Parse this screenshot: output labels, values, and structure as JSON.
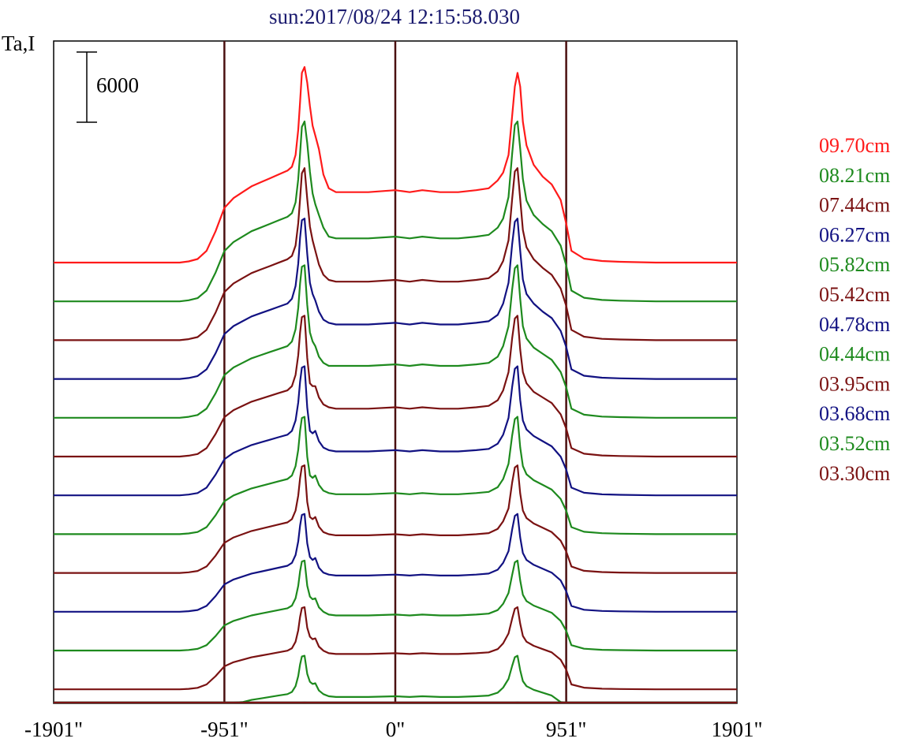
{
  "chart_data": {
    "type": "line",
    "title": "sun:2017/08/24 12:15:58.030",
    "ylabel": "Ta,I",
    "scale_bar_label": "6000",
    "scale_bar_value": 6000,
    "x_tick_labels": [
      "-1901\"",
      "-951\"",
      "0\"",
      "951\"",
      "1901\""
    ],
    "x_ticks": [
      -1901,
      -951,
      0,
      951,
      1901
    ],
    "xlim": [
      -1901,
      1901
    ],
    "vertical_lines_at": [
      -951,
      0,
      951
    ],
    "colors": {
      "title": "#1a1a6e",
      "frame": "#000000",
      "vline": "#4a1010"
    },
    "profile_x": [
      -1901,
      -1750,
      -1600,
      -1450,
      -1200,
      -1150,
      -1100,
      -1050,
      -1000,
      -951,
      -900,
      -850,
      -800,
      -750,
      -700,
      -650,
      -600,
      -575,
      -555,
      -540,
      -530,
      -520,
      -505,
      -490,
      -475,
      -460,
      -445,
      -425,
      -400,
      -370,
      -330,
      -260,
      -150,
      0,
      80,
      150,
      250,
      350,
      450,
      520,
      570,
      600,
      630,
      650,
      665,
      680,
      695,
      710,
      730,
      770,
      820,
      870,
      920,
      951,
      980,
      1050,
      1150,
      1250,
      1450,
      1600,
      1750,
      1901
    ],
    "series": [
      {
        "name": "09.70cm",
        "color": "#ff1a1a",
        "offset": 0,
        "amp": 1.0,
        "profile": [
          0,
          0,
          0,
          0,
          0,
          0.006,
          0.018,
          0.06,
          0.16,
          0.28,
          0.33,
          0.36,
          0.39,
          0.41,
          0.43,
          0.45,
          0.47,
          0.49,
          0.55,
          0.68,
          0.82,
          0.97,
          1.0,
          0.92,
          0.8,
          0.7,
          0.65,
          0.58,
          0.45,
          0.38,
          0.36,
          0.36,
          0.36,
          0.37,
          0.36,
          0.37,
          0.36,
          0.36,
          0.37,
          0.38,
          0.42,
          0.46,
          0.55,
          0.75,
          0.9,
          0.97,
          0.9,
          0.72,
          0.6,
          0.5,
          0.44,
          0.4,
          0.32,
          0.2,
          0.06,
          0.02,
          0.008,
          0.004,
          0,
          0,
          0,
          0
        ]
      },
      {
        "name": "08.21cm",
        "color": "#1e8a1e",
        "offset": 1,
        "amp": 0.92,
        "profile": [
          0,
          0,
          0,
          0,
          0,
          0.006,
          0.018,
          0.06,
          0.16,
          0.28,
          0.33,
          0.36,
          0.39,
          0.41,
          0.43,
          0.45,
          0.47,
          0.49,
          0.55,
          0.68,
          0.82,
          0.97,
          1.0,
          0.88,
          0.72,
          0.6,
          0.54,
          0.48,
          0.41,
          0.36,
          0.35,
          0.35,
          0.35,
          0.36,
          0.35,
          0.36,
          0.35,
          0.35,
          0.36,
          0.37,
          0.41,
          0.46,
          0.58,
          0.82,
          0.98,
          1.0,
          0.85,
          0.68,
          0.56,
          0.48,
          0.43,
          0.39,
          0.31,
          0.2,
          0.06,
          0.02,
          0.008,
          0.004,
          0,
          0,
          0,
          0
        ]
      },
      {
        "name": "07.44cm",
        "color": "#7a1212",
        "offset": 2,
        "amp": 0.88,
        "profile": [
          0,
          0,
          0,
          0,
          0,
          0.006,
          0.018,
          0.06,
          0.16,
          0.28,
          0.33,
          0.36,
          0.39,
          0.41,
          0.43,
          0.45,
          0.47,
          0.49,
          0.55,
          0.68,
          0.82,
          0.97,
          1.0,
          0.82,
          0.66,
          0.58,
          0.52,
          0.44,
          0.38,
          0.35,
          0.34,
          0.34,
          0.34,
          0.35,
          0.34,
          0.35,
          0.34,
          0.34,
          0.35,
          0.36,
          0.4,
          0.46,
          0.58,
          0.82,
          0.98,
          1.0,
          0.82,
          0.64,
          0.54,
          0.47,
          0.42,
          0.38,
          0.3,
          0.2,
          0.06,
          0.02,
          0.008,
          0.004,
          0,
          0,
          0,
          0
        ]
      },
      {
        "name": "06.27cm",
        "color": "#121282",
        "offset": 3,
        "amp": 0.82,
        "profile": [
          0,
          0,
          0,
          0,
          0,
          0.006,
          0.018,
          0.06,
          0.16,
          0.28,
          0.33,
          0.36,
          0.39,
          0.41,
          0.43,
          0.45,
          0.47,
          0.5,
          0.58,
          0.72,
          0.88,
          0.99,
          1.0,
          0.78,
          0.6,
          0.53,
          0.49,
          0.42,
          0.37,
          0.35,
          0.34,
          0.34,
          0.34,
          0.35,
          0.34,
          0.35,
          0.34,
          0.34,
          0.35,
          0.36,
          0.4,
          0.47,
          0.6,
          0.84,
          0.98,
          1.0,
          0.8,
          0.62,
          0.53,
          0.47,
          0.42,
          0.38,
          0.3,
          0.2,
          0.06,
          0.02,
          0.008,
          0.004,
          0,
          0,
          0,
          0
        ]
      },
      {
        "name": "05.82cm",
        "color": "#1e8a1e",
        "offset": 4,
        "amp": 0.78,
        "profile": [
          0,
          0,
          0,
          0,
          0,
          0.006,
          0.018,
          0.06,
          0.16,
          0.28,
          0.33,
          0.36,
          0.39,
          0.41,
          0.43,
          0.45,
          0.47,
          0.5,
          0.58,
          0.72,
          0.88,
          0.99,
          1.0,
          0.74,
          0.56,
          0.5,
          0.47,
          0.4,
          0.36,
          0.34,
          0.34,
          0.34,
          0.34,
          0.35,
          0.34,
          0.35,
          0.34,
          0.34,
          0.35,
          0.36,
          0.4,
          0.47,
          0.6,
          0.84,
          0.98,
          1.0,
          0.78,
          0.6,
          0.52,
          0.46,
          0.42,
          0.38,
          0.3,
          0.2,
          0.06,
          0.02,
          0.008,
          0.004,
          0,
          0,
          0,
          0
        ]
      },
      {
        "name": "05.42cm",
        "color": "#7a1212",
        "offset": 5,
        "amp": 0.72,
        "profile": [
          0,
          0,
          0,
          0,
          0,
          0.006,
          0.018,
          0.06,
          0.16,
          0.28,
          0.33,
          0.36,
          0.39,
          0.41,
          0.43,
          0.45,
          0.47,
          0.5,
          0.58,
          0.72,
          0.88,
          0.99,
          1.0,
          0.7,
          0.52,
          0.5,
          0.5,
          0.42,
          0.37,
          0.35,
          0.34,
          0.34,
          0.34,
          0.35,
          0.34,
          0.35,
          0.34,
          0.34,
          0.35,
          0.36,
          0.4,
          0.47,
          0.6,
          0.84,
          0.98,
          1.0,
          0.76,
          0.6,
          0.52,
          0.46,
          0.42,
          0.38,
          0.3,
          0.2,
          0.06,
          0.02,
          0.008,
          0.004,
          0,
          0,
          0,
          0
        ]
      },
      {
        "name": "04.78cm",
        "color": "#121282",
        "offset": 6,
        "amp": 0.66,
        "profile": [
          0,
          0,
          0,
          0,
          0,
          0.006,
          0.018,
          0.06,
          0.16,
          0.28,
          0.33,
          0.36,
          0.39,
          0.41,
          0.43,
          0.45,
          0.47,
          0.5,
          0.58,
          0.72,
          0.88,
          0.99,
          1.0,
          0.68,
          0.5,
          0.48,
          0.5,
          0.42,
          0.37,
          0.35,
          0.34,
          0.34,
          0.34,
          0.35,
          0.34,
          0.35,
          0.34,
          0.34,
          0.35,
          0.36,
          0.4,
          0.47,
          0.6,
          0.84,
          0.98,
          1.0,
          0.74,
          0.58,
          0.51,
          0.46,
          0.42,
          0.38,
          0.3,
          0.2,
          0.06,
          0.02,
          0.008,
          0.004,
          0,
          0,
          0,
          0
        ]
      },
      {
        "name": "04.44cm",
        "color": "#1e8a1e",
        "offset": 7,
        "amp": 0.6,
        "profile": [
          0,
          0,
          0,
          0,
          0,
          0.006,
          0.018,
          0.06,
          0.16,
          0.28,
          0.33,
          0.36,
          0.39,
          0.41,
          0.43,
          0.45,
          0.47,
          0.5,
          0.58,
          0.72,
          0.88,
          0.99,
          1.0,
          0.66,
          0.5,
          0.48,
          0.5,
          0.42,
          0.37,
          0.35,
          0.34,
          0.34,
          0.34,
          0.35,
          0.34,
          0.35,
          0.34,
          0.34,
          0.35,
          0.36,
          0.4,
          0.47,
          0.6,
          0.84,
          0.98,
          1.0,
          0.74,
          0.58,
          0.51,
          0.46,
          0.42,
          0.38,
          0.3,
          0.2,
          0.06,
          0.02,
          0.008,
          0.004,
          0,
          0,
          0,
          0
        ]
      },
      {
        "name": "03.95cm",
        "color": "#7a1212",
        "offset": 8,
        "amp": 0.55,
        "profile": [
          0,
          0,
          0,
          0,
          0,
          0.006,
          0.018,
          0.06,
          0.16,
          0.28,
          0.33,
          0.36,
          0.39,
          0.41,
          0.43,
          0.45,
          0.47,
          0.5,
          0.58,
          0.72,
          0.88,
          0.99,
          1.0,
          0.66,
          0.52,
          0.5,
          0.52,
          0.43,
          0.38,
          0.36,
          0.35,
          0.35,
          0.35,
          0.36,
          0.35,
          0.36,
          0.35,
          0.35,
          0.36,
          0.37,
          0.41,
          0.48,
          0.6,
          0.84,
          0.98,
          1.0,
          0.74,
          0.58,
          0.51,
          0.46,
          0.42,
          0.38,
          0.3,
          0.2,
          0.06,
          0.02,
          0.008,
          0.004,
          0,
          0,
          0,
          0
        ]
      },
      {
        "name": "03.68cm",
        "color": "#121282",
        "offset": 9,
        "amp": 0.5,
        "profile": [
          0,
          0,
          0,
          0,
          0,
          0.006,
          0.018,
          0.06,
          0.16,
          0.28,
          0.33,
          0.36,
          0.39,
          0.41,
          0.43,
          0.45,
          0.47,
          0.5,
          0.58,
          0.72,
          0.88,
          0.99,
          1.0,
          0.7,
          0.56,
          0.53,
          0.55,
          0.45,
          0.4,
          0.38,
          0.37,
          0.37,
          0.37,
          0.38,
          0.37,
          0.38,
          0.37,
          0.37,
          0.38,
          0.39,
          0.43,
          0.5,
          0.62,
          0.84,
          0.98,
          1.0,
          0.76,
          0.6,
          0.53,
          0.48,
          0.44,
          0.4,
          0.32,
          0.21,
          0.06,
          0.02,
          0.008,
          0.004,
          0,
          0,
          0,
          0
        ]
      },
      {
        "name": "03.52cm",
        "color": "#1e8a1e",
        "offset": 10,
        "amp": 0.46,
        "profile": [
          0,
          0,
          0,
          0,
          0,
          0.006,
          0.018,
          0.06,
          0.16,
          0.28,
          0.33,
          0.36,
          0.39,
          0.41,
          0.43,
          0.45,
          0.47,
          0.5,
          0.58,
          0.72,
          0.88,
          0.99,
          1.0,
          0.72,
          0.6,
          0.57,
          0.58,
          0.48,
          0.43,
          0.4,
          0.39,
          0.39,
          0.39,
          0.4,
          0.39,
          0.4,
          0.39,
          0.39,
          0.4,
          0.41,
          0.45,
          0.52,
          0.64,
          0.84,
          0.98,
          1.0,
          0.78,
          0.62,
          0.55,
          0.5,
          0.46,
          0.42,
          0.33,
          0.22,
          0.06,
          0.02,
          0.008,
          0.004,
          0,
          0,
          0,
          0
        ]
      },
      {
        "name": "03.30cm",
        "color": "#7a1212",
        "offset": 11,
        "amp": 0.42,
        "profile": [
          0,
          0,
          0,
          0,
          0,
          0.006,
          0.018,
          0.06,
          0.16,
          0.28,
          0.33,
          0.36,
          0.39,
          0.41,
          0.43,
          0.45,
          0.47,
          0.5,
          0.58,
          0.72,
          0.88,
          0.99,
          1.0,
          0.75,
          0.64,
          0.61,
          0.62,
          0.52,
          0.47,
          0.44,
          0.43,
          0.43,
          0.43,
          0.44,
          0.43,
          0.44,
          0.43,
          0.43,
          0.44,
          0.45,
          0.49,
          0.56,
          0.68,
          0.86,
          0.98,
          1.0,
          0.8,
          0.65,
          0.58,
          0.53,
          0.49,
          0.45,
          0.36,
          0.24,
          0.06,
          0.02,
          0.008,
          0.004,
          0,
          0,
          0,
          0
        ]
      }
    ],
    "extra_curves": [
      {
        "color": "#1e8a1e",
        "offset": 12,
        "amp": 0.37
      },
      {
        "color": "#121282",
        "offset": 13,
        "amp": 0.33
      },
      {
        "color": "#7a1212",
        "offset": 14,
        "amp": 0.28
      },
      {
        "color": "#1e8a1e",
        "offset": 15,
        "amp": 0.25
      },
      {
        "color": "#121282",
        "offset": 16,
        "amp": 0.22
      },
      {
        "color": "#1e8a1e",
        "offset": 17,
        "amp": 0.18
      },
      {
        "color": "#7a1212",
        "offset": 18,
        "amp": 0.14
      }
    ],
    "grid": false,
    "legend_placement": "right"
  }
}
